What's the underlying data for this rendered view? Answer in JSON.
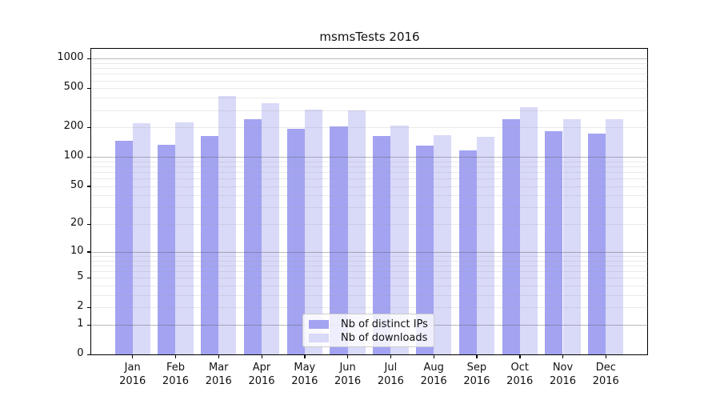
{
  "title": "msmsTests 2016",
  "chart_data": {
    "type": "bar",
    "title": "msmsTests 2016",
    "categories": [
      "Jan",
      "Feb",
      "Mar",
      "Apr",
      "May",
      "Jun",
      "Jul",
      "Aug",
      "Sep",
      "Oct",
      "Nov",
      "Dec"
    ],
    "category_year": "2016",
    "series": [
      {
        "name": "Nb of distinct IPs",
        "color": "#a3a3f2",
        "values": [
          146,
          134,
          163,
          244,
          194,
          205,
          164,
          130,
          116,
          243,
          183,
          174
        ]
      },
      {
        "name": "Nb of downloads",
        "color": "#d9d9f8",
        "values": [
          220,
          224,
          420,
          355,
          306,
          297,
          209,
          167,
          162,
          321,
          242,
          243
        ]
      }
    ],
    "yscale": "log1p",
    "y_ticks": [
      0,
      1,
      2,
      5,
      10,
      20,
      50,
      100,
      200,
      500,
      1000
    ],
    "y_major_gridlines": [
      1,
      10,
      100,
      1000
    ],
    "y_minor_gridlines": [
      2,
      3,
      4,
      5,
      6,
      7,
      8,
      9,
      20,
      30,
      40,
      50,
      60,
      70,
      80,
      90,
      200,
      300,
      400,
      500,
      600,
      700,
      800,
      900
    ],
    "ylim": [
      0,
      1283
    ],
    "grid": "on",
    "legend_position": "bottom-center",
    "colors": {
      "frame": "#000000",
      "text": "#111111",
      "legend_border": "#cccccc"
    }
  }
}
